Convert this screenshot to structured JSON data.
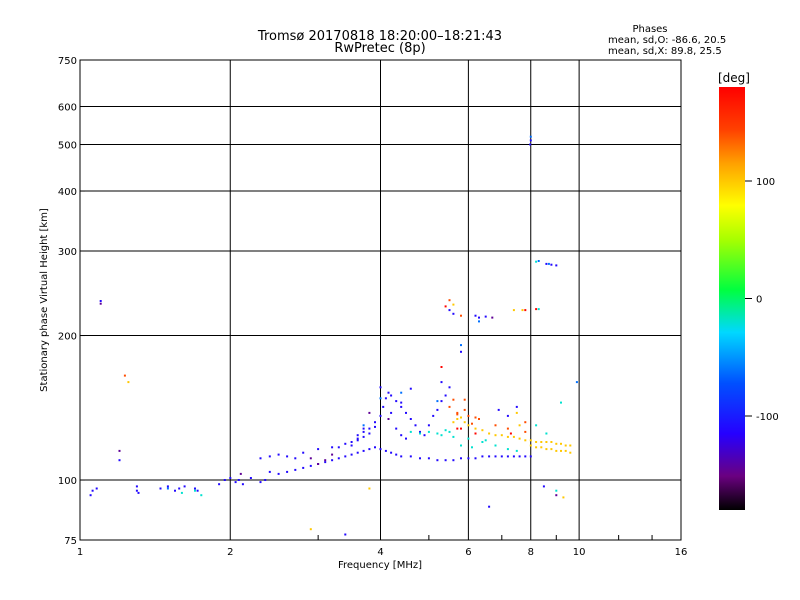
{
  "chart_data": {
    "type": "scatter",
    "title": "Tromsø 20170818 18:20:00–18:21:43",
    "subtitle": "RwPretec (8p)",
    "xlabel": "Frequency [MHz]",
    "ylabel": "Stationary phase Virtual Height [km]",
    "x_scale": "log2",
    "y_scale": "log",
    "xlim": [
      1,
      16
    ],
    "ylim": [
      75,
      750
    ],
    "x_ticks": [
      {
        "value": 1,
        "label": "1"
      },
      {
        "value": 2,
        "label": "2"
      },
      {
        "value": 4,
        "label": "4"
      },
      {
        "value": 6,
        "label": "6"
      },
      {
        "value": 8,
        "label": "8"
      },
      {
        "value": 10,
        "label": "10"
      },
      {
        "value": 16,
        "label": "16"
      }
    ],
    "y_ticks": [
      {
        "value": 75,
        "label": "75"
      },
      {
        "value": 100,
        "label": "100"
      },
      {
        "value": 200,
        "label": "200"
      },
      {
        "value": 300,
        "label": "300"
      },
      {
        "value": 400,
        "label": "400"
      },
      {
        "value": 500,
        "label": "500"
      },
      {
        "value": 600,
        "label": "600"
      },
      {
        "value": 750,
        "label": "750"
      }
    ],
    "grid": true,
    "colorbar": {
      "label": "[deg]",
      "range": [
        -180,
        180
      ],
      "ticks": [
        {
          "value": 100,
          "label": "100"
        },
        {
          "value": 0,
          "label": "0"
        },
        {
          "value": -100,
          "label": "-100"
        }
      ]
    },
    "stats": {
      "header": "Phases",
      "line_o": "mean, sd,O:  -86.6, 20.5",
      "line_x": "mean, sd,X:  89.8, 25.5"
    },
    "point_phase_default": -110,
    "series": [
      {
        "points": [
          [
            1.05,
            93
          ],
          [
            1.06,
            95
          ],
          [
            1.08,
            96
          ],
          [
            1.1,
            236
          ],
          [
            1.2,
            110
          ],
          [
            1.3,
            97
          ],
          [
            1.3,
            95
          ],
          [
            1.31,
            94
          ],
          [
            1.45,
            96
          ],
          [
            1.5,
            97
          ],
          [
            1.55,
            95
          ],
          [
            1.58,
            96
          ],
          [
            1.62,
            97
          ],
          [
            1.7,
            96
          ],
          [
            1.72,
            95
          ],
          [
            1.9,
            98
          ],
          [
            1.95,
            100
          ],
          [
            2.0,
            101
          ],
          [
            2.05,
            99
          ],
          [
            2.08,
            100
          ],
          [
            2.12,
            98
          ],
          [
            2.2,
            101
          ],
          [
            2.3,
            99
          ],
          [
            2.35,
            100
          ],
          [
            2.4,
            104
          ],
          [
            2.5,
            103
          ],
          [
            2.6,
            104
          ],
          [
            2.7,
            105
          ],
          [
            2.8,
            106
          ],
          [
            2.9,
            107
          ],
          [
            3.0,
            108
          ],
          [
            3.1,
            109
          ],
          [
            3.2,
            110
          ],
          [
            3.3,
            111
          ],
          [
            3.4,
            112
          ],
          [
            3.5,
            113
          ],
          [
            3.6,
            114
          ],
          [
            3.7,
            115
          ],
          [
            3.8,
            116
          ],
          [
            3.9,
            117
          ],
          [
            4.0,
            116
          ],
          [
            4.1,
            115
          ],
          [
            4.2,
            114
          ],
          [
            4.3,
            113
          ],
          [
            4.4,
            112
          ],
          [
            4.6,
            112
          ],
          [
            4.8,
            111
          ],
          [
            5.0,
            111
          ],
          [
            5.2,
            110
          ],
          [
            5.4,
            110
          ],
          [
            5.6,
            110
          ],
          [
            5.8,
            111
          ],
          [
            6.0,
            111
          ],
          [
            6.2,
            111
          ],
          [
            6.4,
            112
          ],
          [
            6.6,
            112
          ],
          [
            6.8,
            112
          ],
          [
            7.0,
            112
          ],
          [
            7.2,
            112
          ],
          [
            7.4,
            112
          ],
          [
            7.6,
            112
          ],
          [
            7.8,
            112
          ],
          [
            8.0,
            112
          ],
          [
            2.3,
            111
          ],
          [
            2.4,
            112
          ],
          [
            2.5,
            113
          ],
          [
            2.6,
            112
          ],
          [
            2.7,
            111
          ],
          [
            2.8,
            114
          ],
          [
            3.0,
            116
          ],
          [
            3.2,
            117
          ],
          [
            3.4,
            119
          ],
          [
            3.6,
            122
          ],
          [
            3.7,
            126
          ],
          [
            3.8,
            128
          ],
          [
            3.9,
            132
          ],
          [
            4.0,
            136
          ],
          [
            4.05,
            142
          ],
          [
            4.1,
            148
          ],
          [
            4.15,
            152
          ],
          [
            4.0,
            156
          ],
          [
            4.2,
            150
          ],
          [
            4.3,
            146
          ],
          [
            4.4,
            142
          ],
          [
            4.5,
            138
          ],
          [
            4.6,
            134
          ],
          [
            4.7,
            130
          ],
          [
            4.8,
            126
          ],
          [
            4.9,
            124
          ],
          [
            5.0,
            130
          ],
          [
            5.1,
            136
          ],
          [
            5.2,
            140
          ],
          [
            5.3,
            146
          ],
          [
            5.4,
            150
          ],
          [
            5.5,
            156
          ],
          [
            5.3,
            160
          ],
          [
            4.6,
            155
          ],
          [
            4.4,
            145
          ],
          [
            3.3,
            117
          ],
          [
            3.5,
            118
          ],
          [
            3.6,
            121
          ],
          [
            3.7,
            123
          ],
          [
            3.8,
            125
          ],
          [
            3.9,
            129
          ],
          [
            3.5,
            120
          ],
          [
            3.6,
            124
          ],
          [
            3.7,
            128
          ],
          [
            4.2,
            138
          ],
          [
            4.3,
            128
          ],
          [
            4.4,
            124
          ],
          [
            4.5,
            122
          ],
          [
            5.5,
            226
          ],
          [
            5.6,
            222
          ],
          [
            6.2,
            220
          ],
          [
            6.3,
            218
          ],
          [
            6.5,
            219
          ],
          [
            5.8,
            185
          ],
          [
            6.9,
            140
          ],
          [
            7.2,
            136
          ],
          [
            7.5,
            142
          ],
          [
            8.0,
            510
          ],
          [
            7.98,
            500
          ],
          [
            8.6,
            282
          ],
          [
            8.8,
            281
          ],
          [
            9.0,
            280
          ],
          [
            8.5,
            97
          ],
          [
            6.6,
            88
          ],
          [
            3.4,
            77
          ]
        ]
      },
      {
        "points": [
          [
            1.6,
            94
          ],
          [
            1.7,
            95
          ],
          [
            5.2,
            125
          ],
          [
            5.3,
            124
          ],
          [
            5.5,
            126
          ],
          [
            5.6,
            123
          ],
          [
            6.0,
            122
          ],
          [
            6.5,
            121
          ],
          [
            6.8,
            118
          ],
          [
            7.2,
            116
          ],
          [
            7.5,
            115
          ],
          [
            8.2,
            130
          ],
          [
            8.6,
            125
          ],
          [
            9.0,
            95
          ],
          [
            1.75,
            93
          ],
          [
            4.6,
            126
          ],
          [
            4.8,
            125
          ],
          [
            5.0,
            126
          ],
          [
            5.4,
            127
          ],
          [
            5.8,
            118
          ],
          [
            6.1,
            117
          ],
          [
            6.4,
            120
          ],
          [
            8.3,
            227
          ],
          [
            8.2,
            285
          ],
          [
            9.2,
            145
          ]
        ],
        "phase": -20
      },
      {
        "points": [
          [
            5.6,
            132
          ],
          [
            5.7,
            134
          ],
          [
            5.8,
            135
          ],
          [
            5.9,
            132
          ],
          [
            6.0,
            130
          ],
          [
            6.2,
            128
          ],
          [
            6.4,
            127
          ],
          [
            6.6,
            125
          ],
          [
            6.8,
            124
          ],
          [
            7.0,
            124
          ],
          [
            7.2,
            123
          ],
          [
            7.4,
            123
          ],
          [
            7.6,
            122
          ],
          [
            7.8,
            121
          ],
          [
            8.0,
            121
          ],
          [
            8.2,
            120
          ],
          [
            8.4,
            120
          ],
          [
            8.6,
            120
          ],
          [
            8.8,
            120
          ],
          [
            9.0,
            119
          ],
          [
            9.2,
            119
          ],
          [
            9.4,
            118
          ],
          [
            9.6,
            118
          ],
          [
            8.0,
            118
          ],
          [
            8.2,
            117
          ],
          [
            8.4,
            117
          ],
          [
            8.6,
            116
          ],
          [
            8.8,
            116
          ],
          [
            9.0,
            115
          ],
          [
            9.2,
            115
          ],
          [
            9.4,
            115
          ],
          [
            9.6,
            114
          ],
          [
            1.25,
            160
          ],
          [
            5.6,
            232
          ],
          [
            7.4,
            226
          ],
          [
            7.7,
            226
          ],
          [
            9.3,
            92
          ],
          [
            2.9,
            79
          ],
          [
            3.8,
            96
          ],
          [
            7.5,
            138
          ],
          [
            7.6,
            130
          ]
        ],
        "phase": 100
      },
      {
        "points": [
          [
            5.5,
            142
          ],
          [
            5.7,
            138
          ],
          [
            6.0,
            136
          ],
          [
            6.2,
            135
          ],
          [
            5.6,
            147
          ],
          [
            5.7,
            137
          ],
          [
            5.9,
            140
          ],
          [
            6.1,
            131
          ],
          [
            6.3,
            134
          ],
          [
            6.8,
            130
          ],
          [
            7.2,
            128
          ],
          [
            7.8,
            126
          ],
          [
            5.5,
            237
          ],
          [
            1.23,
            165
          ],
          [
            5.8,
            220
          ],
          [
            7.8,
            132
          ],
          [
            5.9,
            147
          ]
        ],
        "phase": 140
      },
      {
        "points": [
          [
            5.3,
            172
          ],
          [
            6.2,
            125
          ],
          [
            5.8,
            128
          ],
          [
            7.3,
            125
          ],
          [
            5.7,
            128
          ],
          [
            7.8,
            226
          ],
          [
            8.2,
            227
          ],
          [
            5.4,
            230
          ]
        ],
        "phase": 178
      },
      {
        "points": [
          [
            8.0,
            519
          ],
          [
            8.3,
            286
          ],
          [
            8.7,
            282
          ],
          [
            9.9,
            160
          ],
          [
            5.8,
            191
          ],
          [
            4.0,
            148
          ],
          [
            4.4,
            152
          ],
          [
            5.2,
            146
          ],
          [
            3.7,
            130
          ],
          [
            6.3,
            214
          ],
          [
            1.5,
            96
          ]
        ],
        "phase": -62
      },
      {
        "points": [
          [
            1.2,
            115
          ],
          [
            2.9,
            111
          ],
          [
            3.0,
            108
          ],
          [
            3.1,
            110
          ],
          [
            3.2,
            113
          ],
          [
            2.1,
            103
          ],
          [
            6.7,
            218
          ],
          [
            9.0,
            93
          ],
          [
            4.15,
            134
          ],
          [
            3.8,
            138
          ],
          [
            1.1,
            233
          ]
        ],
        "phase": -145
      }
    ]
  }
}
